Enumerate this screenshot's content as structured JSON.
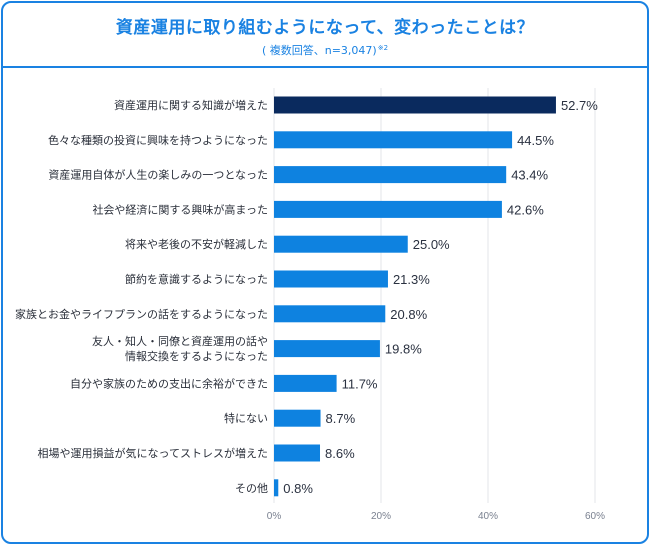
{
  "header": {
    "title": "資産運用に取り組むようになって、変わったことは？",
    "subtitle": "( 複数回答、n=3,047)",
    "footnote_mark": "※2"
  },
  "colors": {
    "accent": "#1a82e2",
    "highlight_bar": "#0a2a5e",
    "bar": "#0e82e0",
    "grid": "#e3e5e8"
  },
  "chart_data": {
    "type": "bar",
    "orientation": "horizontal",
    "title": "資産運用に取り組むようになって、変わったことは？",
    "subtitle": "( 複数回答、n=3,047)※2",
    "xlabel": "",
    "ylabel": "",
    "xlim": [
      0,
      60
    ],
    "x_ticks": [
      0,
      20,
      40,
      60
    ],
    "x_tick_labels": [
      "0%",
      "20%",
      "40%",
      "60%"
    ],
    "grid": true,
    "unit": "%",
    "highlight_index": 0,
    "categories": [
      [
        "資産運用に関する知識が増えた"
      ],
      [
        "色々な種類の投資に興味を持つようになった"
      ],
      [
        "資産運用自体が人生の楽しみの一つとなった"
      ],
      [
        "社会や経済に関する興味が高まった"
      ],
      [
        "将来や老後の不安が軽減した"
      ],
      [
        "節約を意識するようになった"
      ],
      [
        "家族とお金やライフプランの話をするようになった"
      ],
      [
        "友人・知人・同僚と資産運用の話や",
        "情報交換をするようになった"
      ],
      [
        "自分や家族のための支出に余裕ができた"
      ],
      [
        "特にない"
      ],
      [
        "相場や運用損益が気になってストレスが増えた"
      ],
      [
        "その他"
      ]
    ],
    "values": [
      52.7,
      44.5,
      43.4,
      42.6,
      25.0,
      21.3,
      20.8,
      19.8,
      11.7,
      8.7,
      8.6,
      0.8
    ],
    "value_labels": [
      "52.7%",
      "44.5%",
      "43.4%",
      "42.6%",
      "25.0%",
      "21.3%",
      "20.8%",
      "19.8%",
      "11.7%",
      "8.7%",
      "8.6%",
      "0.8%"
    ]
  }
}
